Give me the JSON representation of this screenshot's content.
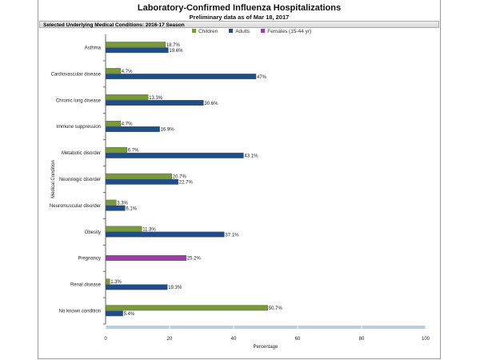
{
  "chart_data": {
    "type": "bar",
    "orientation": "horizontal",
    "title": "Laboratory-Confirmed Influenza Hospitalizations",
    "subtitle": "Preliminary data as of Mar 18, 2017",
    "section_header": "Selected Underlying Medical Conditions: 2016-17 Season",
    "xlabel": "Percentage",
    "ylabel": "Medical Condition",
    "xlim": [
      0,
      100
    ],
    "xticks": [
      "0",
      "20",
      "40",
      "60",
      "80",
      "100"
    ],
    "legend_position": "top",
    "categories": [
      "Asthma",
      "Cardiovascular disease",
      "Chronic lung disease",
      "Immune suppression",
      "Metabolic disorder",
      "Neurologic disorder",
      "Neuromuscular disorder",
      "Obesity",
      "Pregnancy",
      "Renal disease",
      "No known condition"
    ],
    "series": [
      {
        "name": "Children",
        "color": "#7a9a3a",
        "values": [
          18.7,
          4.7,
          13.3,
          4.7,
          6.7,
          20.7,
          3.3,
          11.3,
          null,
          1.3,
          50.7
        ],
        "labels": [
          "18.7%",
          "4.7%",
          "13.3%",
          "4.7%",
          "6.7%",
          "20.7%",
          "3.3%",
          "11.3%",
          null,
          "1.3%",
          "50.7%"
        ]
      },
      {
        "name": "Adults",
        "color": "#1f4e86",
        "values": [
          19.6,
          47,
          30.6,
          16.9,
          43.1,
          22.7,
          6.1,
          37.1,
          null,
          19.3,
          5.4
        ],
        "labels": [
          "19.6%",
          "47%",
          "30.6%",
          "16.9%",
          "43.1%",
          "22.7%",
          "6.1%",
          "37.1%",
          null,
          "19.3%",
          "5.4%"
        ]
      },
      {
        "name": "Females (15-44 yr)",
        "color": "#9b3fa6",
        "values": [
          null,
          null,
          null,
          null,
          null,
          null,
          null,
          null,
          25.2,
          null,
          null
        ],
        "labels": [
          null,
          null,
          null,
          null,
          null,
          null,
          null,
          null,
          "25.2%",
          null,
          null
        ]
      }
    ]
  }
}
